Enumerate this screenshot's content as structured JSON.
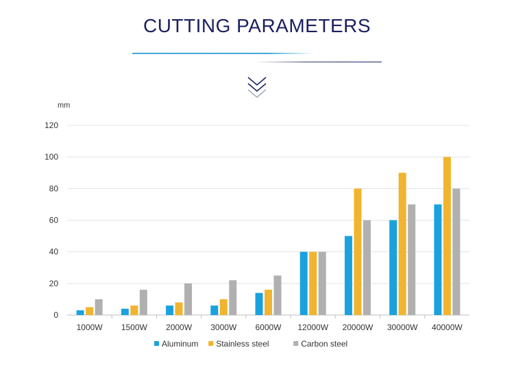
{
  "header": {
    "title": "CUTTING PARAMETERS"
  },
  "colors": {
    "title": "#1b1f5e",
    "underline_left": "#2a9fd6",
    "underline_right": "#1b1f5e",
    "chevron_dark": "#1b1f5e",
    "chevron_light": "#9aa0b4"
  },
  "icons": {
    "scroll_hint": "double-chevron-down-icon"
  },
  "chart_data": {
    "type": "bar",
    "title": "",
    "xlabel": "",
    "ylabel": "mm",
    "ylim": [
      0,
      120
    ],
    "yticks": [
      0,
      20,
      40,
      60,
      80,
      100,
      120
    ],
    "grid": true,
    "legend_position": "bottom-center",
    "categories": [
      "1000W",
      "1500W",
      "2000W",
      "3000W",
      "6000W",
      "12000W",
      "20000W",
      "30000W",
      "40000W"
    ],
    "series": [
      {
        "name": "Aluminum",
        "color": "#1ba1de",
        "values": [
          3,
          4,
          6,
          6,
          14,
          40,
          50,
          60,
          70
        ]
      },
      {
        "name": "Stainless steel",
        "color": "#f0b42e",
        "values": [
          5,
          6,
          8,
          10,
          16,
          40,
          80,
          90,
          100
        ]
      },
      {
        "name": "Carbon steel",
        "color": "#b0b0b0",
        "values": [
          10,
          16,
          20,
          22,
          25,
          40,
          60,
          70,
          80
        ]
      }
    ]
  }
}
